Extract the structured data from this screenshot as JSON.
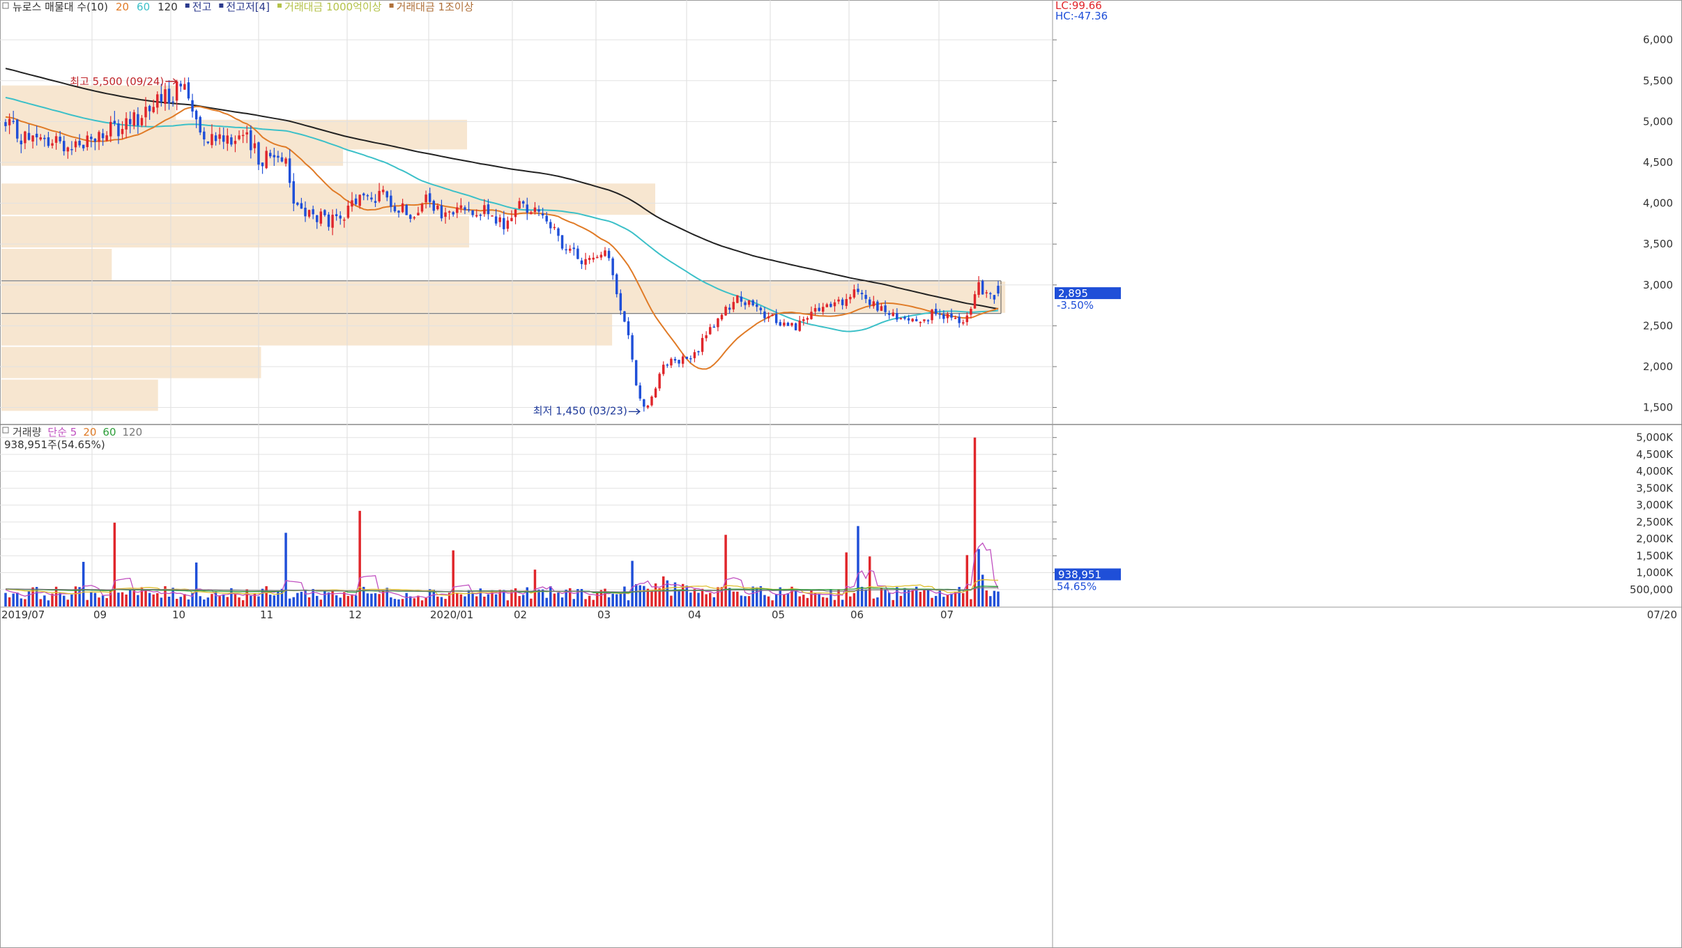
{
  "price_legend": [
    {
      "text": "뉴로스 매물대 수(10)",
      "color": "#333333"
    },
    {
      "text": "20",
      "color": "#e07b27"
    },
    {
      "text": "60",
      "color": "#3cc0c8"
    },
    {
      "text": "120",
      "color": "#333333"
    },
    {
      "text": "전고",
      "color": "#2b3a8c"
    },
    {
      "text": "전고저[4]",
      "color": "#2b3a8c"
    },
    {
      "text": "거래대금 1000억이상",
      "color": "#b4c24a"
    },
    {
      "text": "거래대금 1조이상",
      "color": "#b0713a"
    }
  ],
  "top_right": {
    "lc": "LC:99.66",
    "hc": "HC:-47.36"
  },
  "volume_legend": [
    {
      "text": "거래량",
      "color": "#444444"
    },
    {
      "text": "단순 5",
      "color": "#c050c0"
    },
    {
      "text": "20",
      "color": "#e07b27"
    },
    {
      "text": "60",
      "color": "#2e9e3a"
    },
    {
      "text": "120",
      "color": "#777777"
    }
  ],
  "volume_readout": "938,951주(54.65%)",
  "annotations": {
    "high": "최고 5,500 (09/24)",
    "low": "최저 1,450 (03/23)"
  },
  "current": {
    "price": "2,895",
    "change": "-3.50%",
    "volume": "938,951",
    "volume_pct": "54.65%"
  },
  "x_labels": [
    "2019/07",
    "09",
    "10",
    "11",
    "12",
    "2020/01",
    "02",
    "03",
    "04",
    "05",
    "06",
    "07"
  ],
  "x_last_label": "07/20",
  "chart_data": {
    "type": "candlestick",
    "price_axis": {
      "ylim": [
        1300,
        6300
      ],
      "ticks": [
        1500,
        2000,
        2500,
        3000,
        3500,
        4000,
        4500,
        5000,
        5500,
        6000
      ],
      "tick_labels": [
        "1,500",
        "2,000",
        "2,500",
        "3,000",
        "3,500",
        "4,000",
        "4,500",
        "5,000",
        "5,500",
        "6,000"
      ]
    },
    "volume_axis": {
      "ylim": [
        0,
        5200000
      ],
      "ticks": [
        500000,
        1000000,
        1500000,
        2000000,
        2500000,
        3000000,
        3500000,
        4000000,
        4500000,
        5000000
      ],
      "tick_labels": [
        "500,000",
        "1,000K",
        "1,500K",
        "2,000K",
        "2,500K",
        "3,000K",
        "3,500K",
        "4,000K",
        "4,500K",
        "5,000K"
      ]
    },
    "ohlc_price_waypoints": [
      [
        0,
        4920
      ],
      [
        8,
        4750
      ],
      [
        18,
        4730
      ],
      [
        28,
        4880
      ],
      [
        40,
        5250
      ],
      [
        45,
        5420
      ],
      [
        52,
        4850
      ],
      [
        60,
        4820
      ],
      [
        66,
        4560
      ],
      [
        72,
        4600
      ],
      [
        74,
        3980
      ],
      [
        80,
        3820
      ],
      [
        86,
        3750
      ],
      [
        90,
        4050
      ],
      [
        96,
        4080
      ],
      [
        104,
        3900
      ],
      [
        108,
        4020
      ],
      [
        112,
        3850
      ],
      [
        120,
        3950
      ],
      [
        128,
        3740
      ],
      [
        132,
        3980
      ],
      [
        138,
        3880
      ],
      [
        144,
        3400
      ],
      [
        150,
        3280
      ],
      [
        154,
        3480
      ],
      [
        158,
        2700
      ],
      [
        164,
        1500
      ],
      [
        170,
        2050
      ],
      [
        176,
        2100
      ],
      [
        182,
        2530
      ],
      [
        188,
        2830
      ],
      [
        196,
        2600
      ],
      [
        202,
        2500
      ],
      [
        212,
        2740
      ],
      [
        220,
        2900
      ],
      [
        224,
        2700
      ],
      [
        230,
        2580
      ],
      [
        240,
        2640
      ],
      [
        246,
        2520
      ],
      [
        250,
        2960
      ],
      [
        255,
        2850
      ]
    ],
    "price_zones": [
      {
        "from": 4950,
        "to": 5450,
        "length": 0.166
      },
      {
        "from": 4450,
        "to": 4950,
        "length": 0.325
      },
      {
        "from": 4650,
        "to": 5030,
        "length": 0.443
      },
      {
        "from": 3850,
        "to": 4250,
        "length": 0.622
      },
      {
        "from": 3450,
        "to": 3850,
        "length": 0.445
      },
      {
        "from": 3050,
        "to": 3450,
        "length": 0.105
      },
      {
        "from": 2650,
        "to": 3050,
        "length": 0.955
      },
      {
        "from": 2250,
        "to": 2650,
        "length": 0.581
      },
      {
        "from": 1850,
        "to": 2250,
        "length": 0.247
      },
      {
        "from": 1450,
        "to": 1850,
        "length": 0.149
      }
    ],
    "volume_spikes": [
      [
        20,
        1320000,
        "down"
      ],
      [
        28,
        2480000,
        "up"
      ],
      [
        49,
        1300000,
        "down"
      ],
      [
        72,
        2180000,
        "down"
      ],
      [
        91,
        2830000,
        "up"
      ],
      [
        115,
        1660000,
        "up"
      ],
      [
        136,
        1090000,
        "up"
      ],
      [
        161,
        1350000,
        "down"
      ],
      [
        185,
        2120000,
        "up"
      ],
      [
        216,
        1600000,
        "up"
      ],
      [
        219,
        2380000,
        "down"
      ],
      [
        222,
        1480000,
        "up"
      ],
      [
        247,
        1520000,
        "up"
      ],
      [
        249,
        5000000,
        "up"
      ],
      [
        250,
        1700000,
        "down"
      ],
      [
        251,
        938951,
        "down"
      ]
    ]
  }
}
